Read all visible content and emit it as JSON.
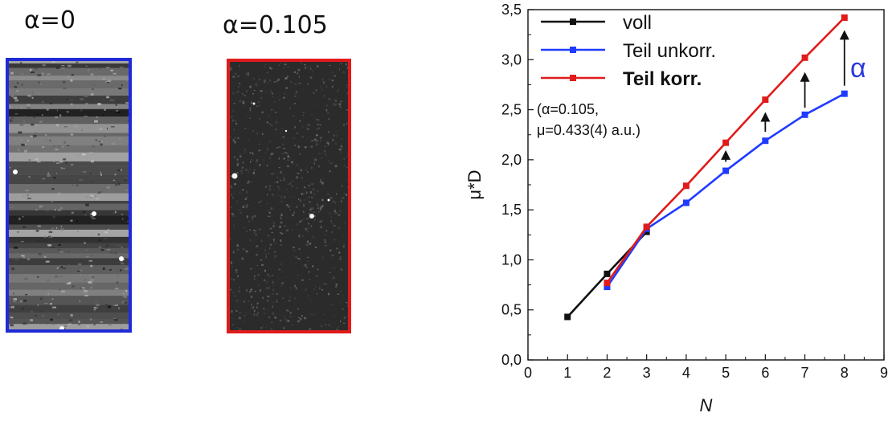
{
  "panels": {
    "left": {
      "label": "α=0",
      "border_color": "#1f2bd6"
    },
    "right": {
      "label": "α=0.105",
      "border_color": "#e01b1b"
    }
  },
  "chart_data": {
    "type": "line",
    "xlabel": "N",
    "ylabel": "μ*D",
    "xlim": [
      0,
      9
    ],
    "ylim": [
      0.0,
      3.5
    ],
    "xticks": [
      "0",
      "1",
      "2",
      "3",
      "4",
      "5",
      "6",
      "7",
      "8",
      "9"
    ],
    "yticks": [
      "0,0",
      "0,5",
      "1,0",
      "1,5",
      "2,0",
      "2,5",
      "3,0",
      "3,5"
    ],
    "grid": false,
    "legend_position": "top-left",
    "series": [
      {
        "name": "voll",
        "color": "#111111",
        "bold": false,
        "x": [
          1,
          2,
          3
        ],
        "y": [
          0.43,
          0.86,
          1.28
        ]
      },
      {
        "name": "Teil unkorr.",
        "color": "#1f3bff",
        "bold": false,
        "x": [
          2,
          3,
          4,
          5,
          6,
          7,
          8
        ],
        "y": [
          0.73,
          1.31,
          1.57,
          1.89,
          2.19,
          2.45,
          2.66
        ]
      },
      {
        "name": "Teil korr.",
        "color": "#e01b1b",
        "bold": true,
        "x": [
          2,
          3,
          4,
          5,
          6,
          7,
          8
        ],
        "y": [
          0.77,
          1.33,
          1.74,
          2.17,
          2.6,
          3.02,
          3.42
        ]
      }
    ],
    "annotation_lines": [
      "(α=0.105,",
      "μ=0.433(4)  a.u.)"
    ],
    "arrow_label": "α",
    "arrows": [
      {
        "x": 5,
        "from": 1.98,
        "to": 2.08
      },
      {
        "x": 6,
        "from": 2.28,
        "to": 2.46
      },
      {
        "x": 7,
        "from": 2.52,
        "to": 2.86
      },
      {
        "x": 8,
        "from": 2.74,
        "to": 3.28
      }
    ]
  }
}
